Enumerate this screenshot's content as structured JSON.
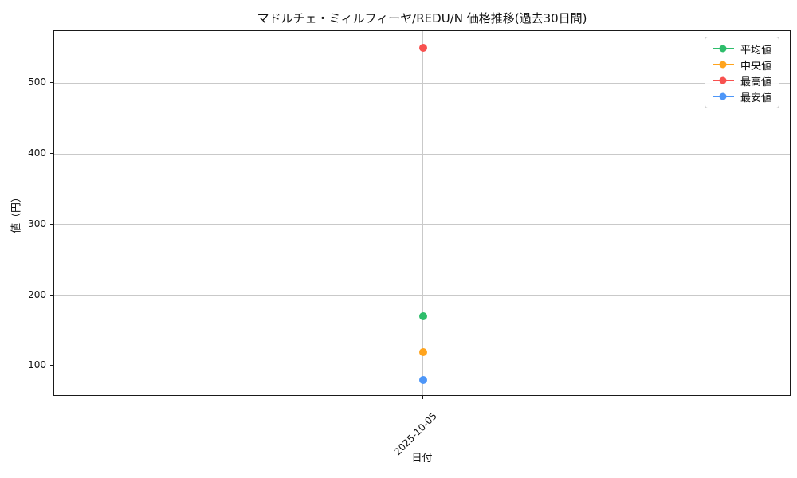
{
  "chart_data": {
    "type": "line",
    "title": "マドルチェ・ミィルフィーヤ/REDU/N 価格推移(過去30日間)",
    "xlabel": "日付",
    "ylabel": "値（円）",
    "x": [
      "2025-10-05"
    ],
    "series": [
      {
        "key": "mean",
        "name": "平均値",
        "color": "#2ebd6b",
        "values": [
          170
        ]
      },
      {
        "key": "median",
        "name": "中央値",
        "color": "#ffa41d",
        "values": [
          120
        ]
      },
      {
        "key": "max",
        "name": "最高値",
        "color": "#f8514f",
        "values": [
          550
        ]
      },
      {
        "key": "min",
        "name": "最安値",
        "color": "#4d96f8",
        "values": [
          80
        ]
      }
    ],
    "yticks": [
      100,
      200,
      300,
      400,
      500
    ],
    "ylim": [
      56.5,
      573.5
    ],
    "grid": true,
    "marker": "circle",
    "legend_position": "upper right",
    "background": "#ffffff",
    "spine_color": "#1a1a1a",
    "grid_color": "#c9c9c9"
  }
}
